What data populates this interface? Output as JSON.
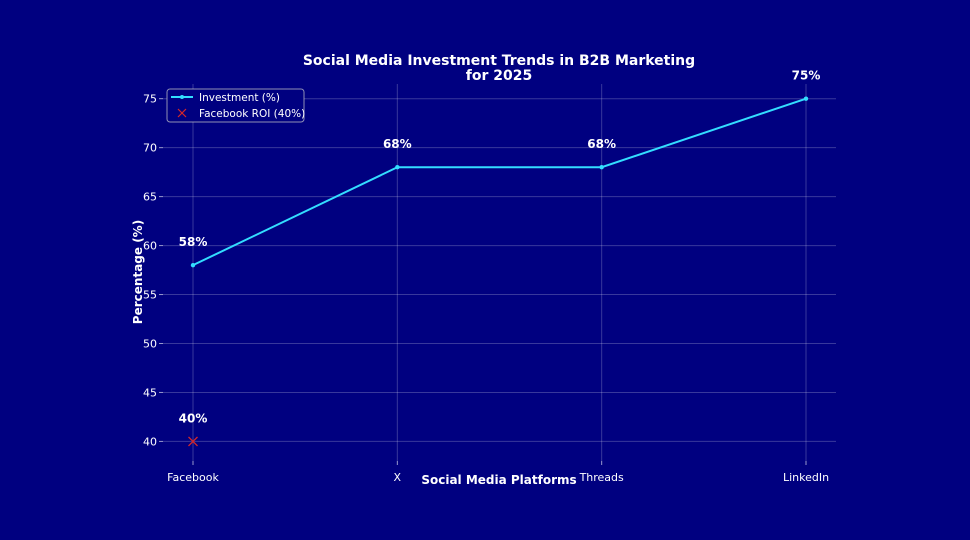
{
  "chart_data": {
    "type": "line",
    "title_lines": [
      "Social Media Investment Trends in B2B Marketing",
      "for 2025"
    ],
    "xlabel": "Social Media Platforms",
    "ylabel": "Percentage (%)",
    "categories": [
      "Facebook",
      "X",
      "Threads",
      "LinkedIn"
    ],
    "ylim": [
      38,
      76.5
    ],
    "yticks": [
      40,
      45,
      50,
      55,
      60,
      65,
      70,
      75
    ],
    "grid": true,
    "legend_position": "top-left",
    "series": [
      {
        "name": "Investment (%)",
        "values": [
          58,
          68,
          68,
          75
        ],
        "labels": [
          "58%",
          "68%",
          "68%",
          "75%"
        ],
        "color": "#33ddff"
      }
    ],
    "points": [
      {
        "name": "Facebook ROI (40%)",
        "category": "Facebook",
        "value": 40,
        "label": "40%",
        "marker": "x",
        "color": "#d62728"
      }
    ]
  },
  "colors": {
    "background": "#000080",
    "text": "#ffffff"
  }
}
